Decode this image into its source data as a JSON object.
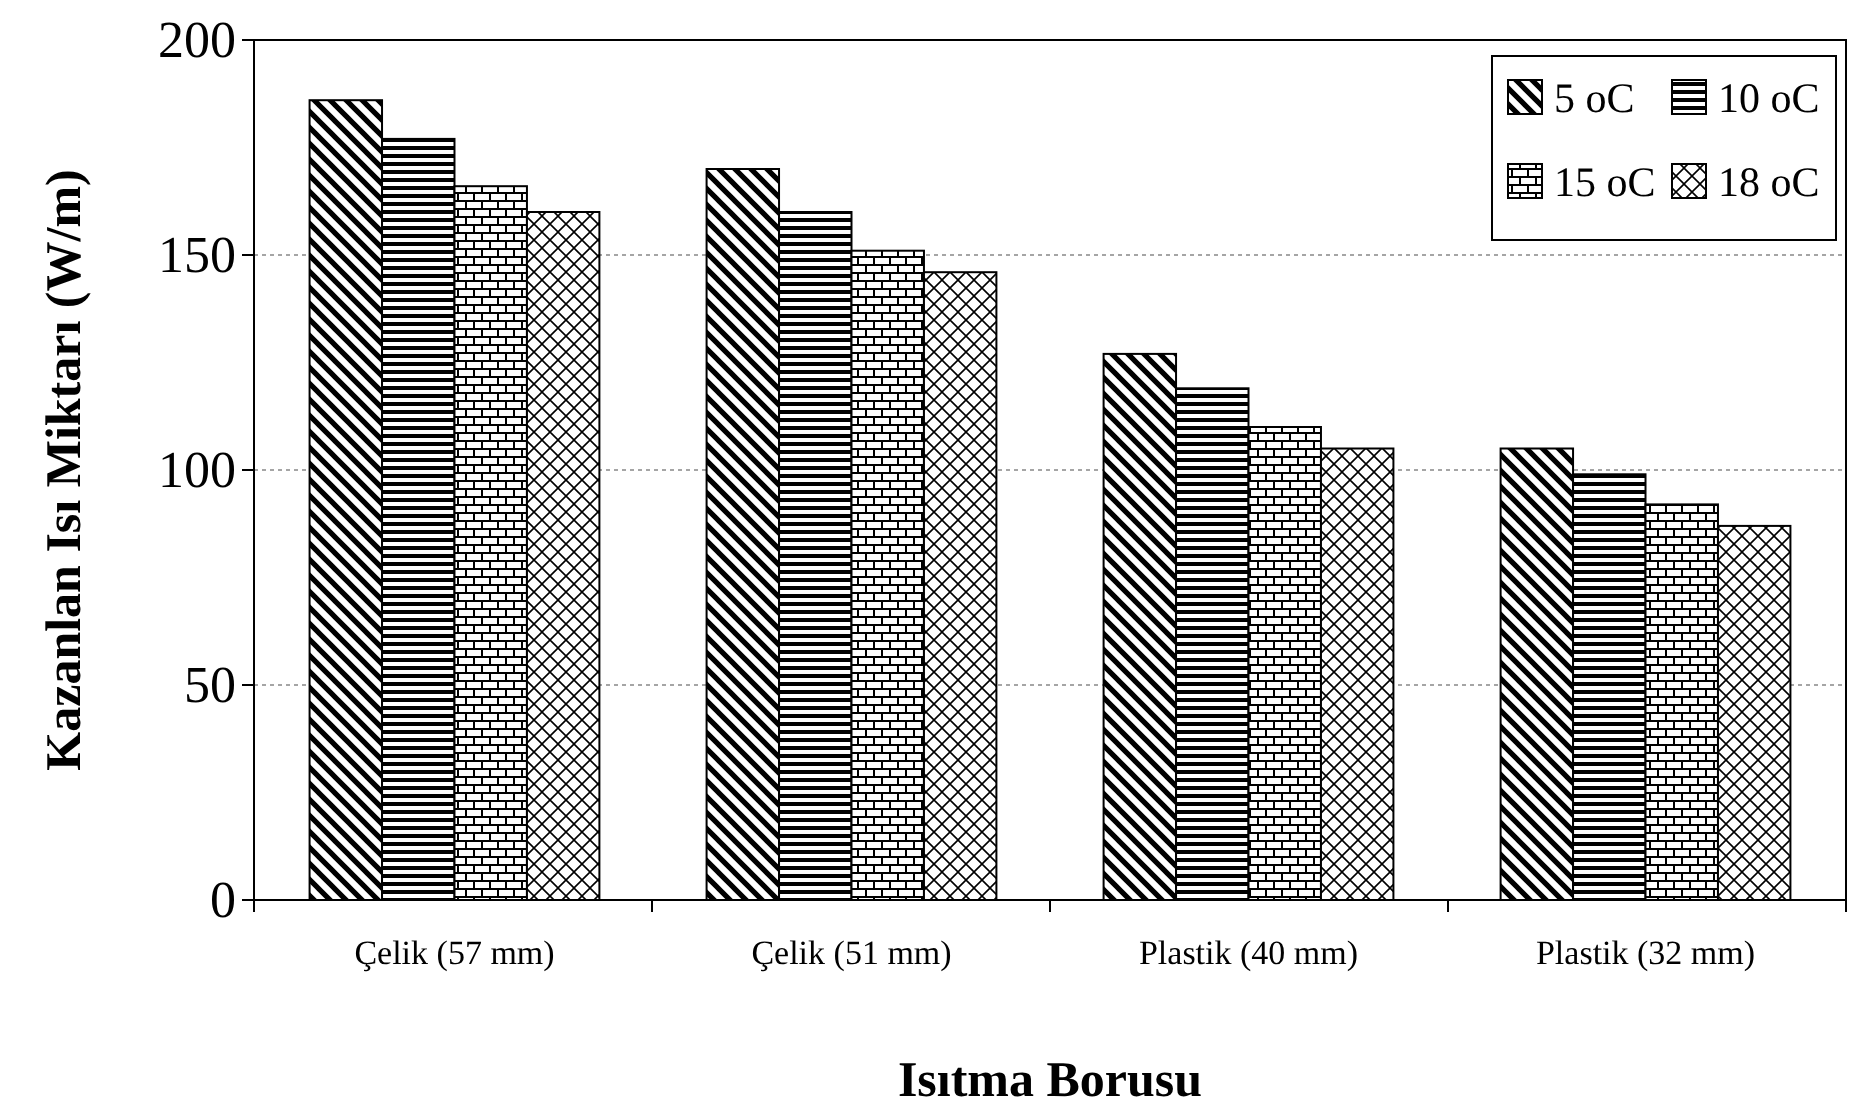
{
  "chart_data": {
    "type": "bar",
    "xlabel": "Isıtma Borusu",
    "ylabel": "Kazanlan Isı Miktarı (W/m)",
    "categories": [
      "Çelik (57 mm)",
      "Çelik (51 mm)",
      "Plastik (40 mm)",
      "Plastik (32 mm)"
    ],
    "series": [
      {
        "name": "5 oC",
        "color": "#000000",
        "values": [
          186,
          170,
          127,
          105
        ]
      },
      {
        "name": "10 oC",
        "color": "#000000",
        "values": [
          177,
          160,
          119,
          99
        ]
      },
      {
        "name": "15 oC",
        "color": "#000000",
        "values": [
          166,
          151,
          110,
          92
        ]
      },
      {
        "name": "18 oC",
        "color": "#000000",
        "values": [
          160,
          146,
          105,
          87
        ]
      }
    ],
    "ylim": [
      0,
      200
    ],
    "yticks": [
      0,
      50,
      100,
      150,
      200
    ],
    "grid": "y",
    "legend": "top right"
  }
}
